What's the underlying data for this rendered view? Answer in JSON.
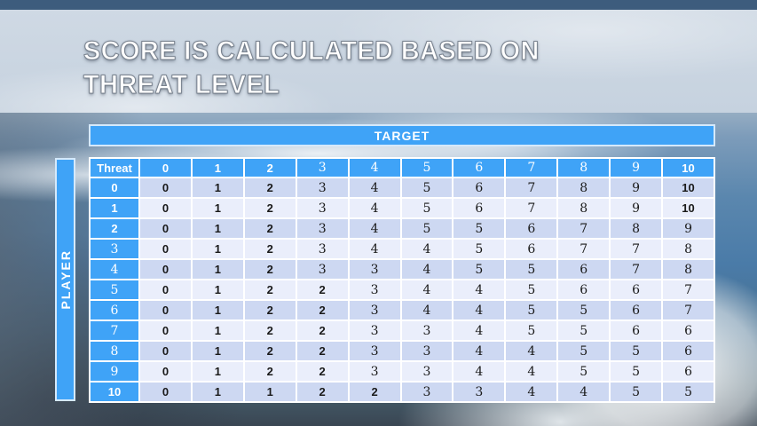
{
  "slide": {
    "title_line1": "SCORE IS CALCULATED BASED ON",
    "title_line2": "THREAT LEVEL"
  },
  "axes": {
    "target_label": "TARGET",
    "player_label": "PLAYER",
    "corner_label": "Threat"
  },
  "chart_data": {
    "type": "table",
    "title": "SCORE IS CALCULATED BASED ON THREAT LEVEL",
    "x_axis_label": "TARGET",
    "y_axis_label": "PLAYER",
    "corner_label": "Threat",
    "columns": [
      "0",
      "1",
      "2",
      "3",
      "4",
      "5",
      "6",
      "7",
      "8",
      "9",
      "10"
    ],
    "row_labels": [
      "0",
      "1",
      "2",
      "3",
      "4",
      "5",
      "6",
      "7",
      "8",
      "9",
      "10"
    ],
    "values": [
      [
        "0",
        "1",
        "2",
        "3",
        "4",
        "5",
        "6",
        "7",
        "8",
        "9",
        "10"
      ],
      [
        "0",
        "1",
        "2",
        "3",
        "4",
        "5",
        "6",
        "7",
        "8",
        "9",
        "10"
      ],
      [
        "0",
        "1",
        "2",
        "3",
        "4",
        "5",
        "5",
        "6",
        "7",
        "8",
        "9"
      ],
      [
        "0",
        "1",
        "2",
        "3",
        "4",
        "4",
        "5",
        "6",
        "7",
        "7",
        "8"
      ],
      [
        "0",
        "1",
        "2",
        "3",
        "3",
        "4",
        "5",
        "5",
        "6",
        "7",
        "8"
      ],
      [
        "0",
        "1",
        "2",
        "2",
        "3",
        "4",
        "4",
        "5",
        "6",
        "6",
        "7"
      ],
      [
        "0",
        "1",
        "2",
        "2",
        "3",
        "4",
        "4",
        "5",
        "5",
        "6",
        "7"
      ],
      [
        "0",
        "1",
        "2",
        "2",
        "3",
        "3",
        "4",
        "5",
        "5",
        "6",
        "6"
      ],
      [
        "0",
        "1",
        "2",
        "2",
        "3",
        "3",
        "4",
        "4",
        "5",
        "5",
        "6"
      ],
      [
        "0",
        "1",
        "2",
        "2",
        "3",
        "3",
        "4",
        "4",
        "5",
        "5",
        "6"
      ],
      [
        "0",
        "1",
        "1",
        "2",
        "2",
        "3",
        "3",
        "4",
        "4",
        "5",
        "5"
      ]
    ]
  },
  "colors": {
    "table_blue": "#3fa3f7",
    "row_even": "#cdd8f2",
    "row_odd": "#eaeefb",
    "grid_line": "#ffffff",
    "top_strip": "#3d5c7d",
    "title_band": "#c8d3df",
    "title_text": "#ffffff",
    "body_text": "#1a1a1a"
  }
}
